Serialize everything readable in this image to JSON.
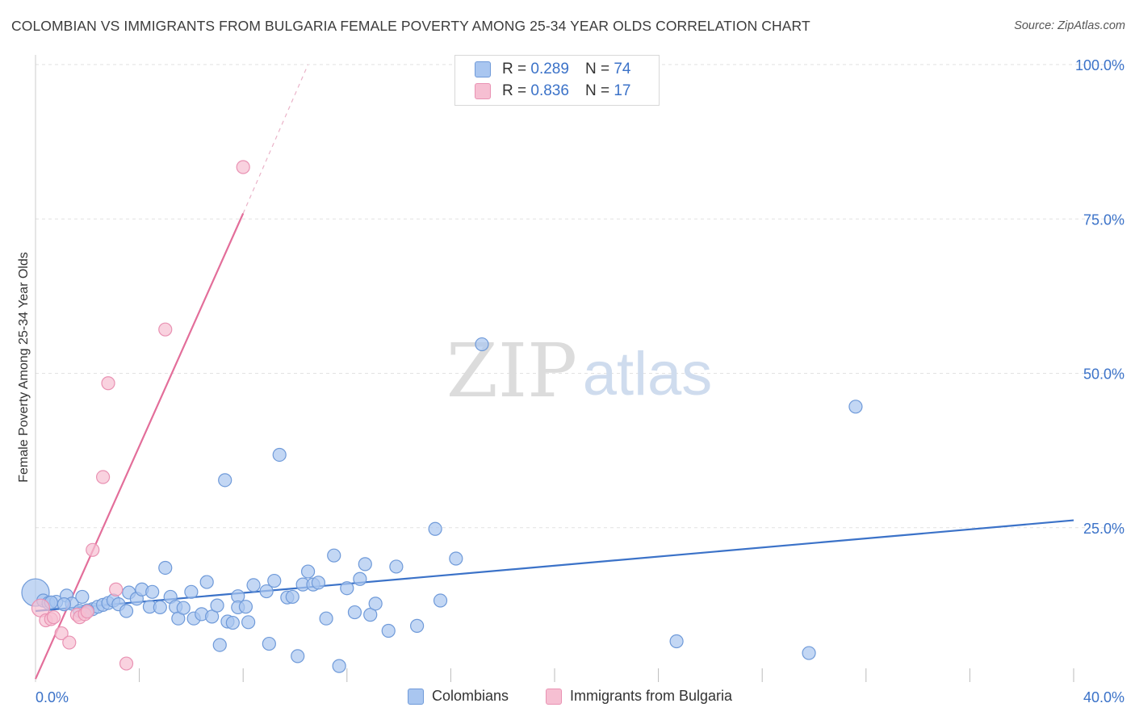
{
  "title": "COLOMBIAN VS IMMIGRANTS FROM BULGARIA FEMALE POVERTY AMONG 25-34 YEAR OLDS CORRELATION CHART",
  "source": "Source: ZipAtlas.com",
  "watermark": {
    "zip": "ZIP",
    "atlas": "atlas"
  },
  "colors": {
    "blue": "#3b72c8",
    "blue_fill": "#a9c6f0",
    "pink": "#e36e9a",
    "pink_fill": "#f6bfd2",
    "grid": "#e2e2e2",
    "tick_label": "#3b72c8"
  },
  "legend": {
    "rows": [
      {
        "r_label": "R =",
        "r_value": "0.289",
        "n_label": "N =",
        "n_value": "74",
        "series": "blue"
      },
      {
        "r_label": "R =",
        "r_value": "0.836",
        "n_label": "N =",
        "n_value": "17",
        "series": "pink"
      }
    ]
  },
  "bottom_legend": {
    "colombians": "Colombians",
    "bulgaria": "Immigrants from Bulgaria"
  },
  "chart_data": {
    "type": "scatter",
    "title": "COLOMBIAN VS IMMIGRANTS FROM BULGARIA FEMALE POVERTY AMONG 25-34 YEAR OLDS CORRELATION CHART",
    "xlabel": "",
    "ylabel": "Female Poverty Among 25-34 Year Olds",
    "xlim": [
      0,
      40
    ],
    "ylim": [
      0,
      100
    ],
    "x_tick_labels": [
      {
        "value": 0,
        "label": "0.0%"
      },
      {
        "value": 40,
        "label": "40.0%"
      }
    ],
    "y_tick_labels": [
      {
        "value": 25,
        "label": "25.0%"
      },
      {
        "value": 50,
        "label": "50.0%"
      },
      {
        "value": 75,
        "label": "75.0%"
      },
      {
        "value": 100,
        "label": "100.0%"
      }
    ],
    "grid": true,
    "legend_position": "top-center",
    "series": [
      {
        "name": "Colombians",
        "color": "blue",
        "points": [
          [
            0.0,
            14.5
          ],
          [
            0.3,
            13.2
          ],
          [
            0.5,
            12.8
          ],
          [
            0.8,
            13.0
          ],
          [
            1.2,
            14.0
          ],
          [
            1.4,
            12.7
          ],
          [
            1.7,
            11.5
          ],
          [
            1.8,
            13.8
          ],
          [
            2.2,
            11.8
          ],
          [
            2.4,
            12.2
          ],
          [
            2.6,
            12.5
          ],
          [
            2.8,
            12.8
          ],
          [
            3.0,
            13.2
          ],
          [
            3.2,
            12.6
          ],
          [
            3.5,
            11.5
          ],
          [
            3.6,
            14.5
          ],
          [
            3.9,
            13.5
          ],
          [
            4.1,
            15.0
          ],
          [
            4.4,
            12.2
          ],
          [
            4.5,
            14.6
          ],
          [
            4.8,
            12.1
          ],
          [
            5.0,
            18.5
          ],
          [
            5.2,
            13.8
          ],
          [
            5.4,
            12.2
          ],
          [
            5.5,
            10.3
          ],
          [
            5.7,
            12.0
          ],
          [
            6.0,
            14.6
          ],
          [
            6.1,
            10.3
          ],
          [
            6.4,
            11.0
          ],
          [
            6.6,
            16.2
          ],
          [
            6.8,
            10.6
          ],
          [
            7.0,
            12.4
          ],
          [
            7.1,
            6.0
          ],
          [
            7.3,
            32.7
          ],
          [
            7.4,
            9.8
          ],
          [
            7.6,
            9.6
          ],
          [
            7.8,
            13.9
          ],
          [
            7.8,
            12.1
          ],
          [
            8.1,
            12.2
          ],
          [
            8.2,
            9.7
          ],
          [
            8.4,
            15.7
          ],
          [
            8.9,
            14.7
          ],
          [
            9.0,
            6.2
          ],
          [
            9.2,
            16.4
          ],
          [
            9.4,
            36.8
          ],
          [
            9.7,
            13.7
          ],
          [
            9.9,
            13.8
          ],
          [
            10.1,
            4.2
          ],
          [
            10.3,
            15.8
          ],
          [
            10.5,
            17.9
          ],
          [
            10.7,
            15.8
          ],
          [
            10.9,
            16.1
          ],
          [
            11.2,
            10.3
          ],
          [
            11.5,
            20.5
          ],
          [
            11.7,
            2.6
          ],
          [
            12.0,
            15.2
          ],
          [
            12.3,
            11.3
          ],
          [
            12.5,
            16.7
          ],
          [
            12.7,
            19.1
          ],
          [
            12.9,
            10.9
          ],
          [
            13.1,
            12.7
          ],
          [
            13.6,
            8.3
          ],
          [
            13.9,
            18.7
          ],
          [
            14.7,
            9.1
          ],
          [
            15.4,
            24.8
          ],
          [
            15.6,
            13.2
          ],
          [
            16.2,
            20.0
          ],
          [
            17.2,
            54.7
          ],
          [
            24.7,
            6.6
          ],
          [
            29.8,
            4.7
          ],
          [
            31.6,
            44.6
          ],
          [
            0.6,
            12.9
          ],
          [
            2.0,
            11.6
          ],
          [
            1.1,
            12.6
          ]
        ],
        "trend": {
          "x": [
            0,
            40
          ],
          "y": [
            11.5,
            26.2
          ]
        }
      },
      {
        "name": "Immigrants from Bulgaria",
        "color": "pink",
        "points": [
          [
            0.2,
            12.0
          ],
          [
            0.4,
            10.0
          ],
          [
            0.6,
            10.2
          ],
          [
            0.7,
            10.5
          ],
          [
            1.0,
            7.9
          ],
          [
            1.3,
            6.4
          ],
          [
            1.6,
            10.9
          ],
          [
            1.7,
            10.5
          ],
          [
            1.9,
            11.0
          ],
          [
            2.2,
            21.4
          ],
          [
            2.6,
            33.2
          ],
          [
            2.8,
            48.4
          ],
          [
            3.1,
            15.0
          ],
          [
            3.5,
            3.0
          ],
          [
            5.0,
            57.1
          ],
          [
            8.0,
            83.4
          ],
          [
            2.0,
            11.4
          ]
        ],
        "trend": {
          "x": [
            0,
            8.0
          ],
          "y": [
            0.5,
            75.9
          ]
        },
        "trend_dashed": {
          "x": [
            8.0,
            10.5
          ],
          "y": [
            75.9,
            100
          ]
        }
      }
    ]
  }
}
